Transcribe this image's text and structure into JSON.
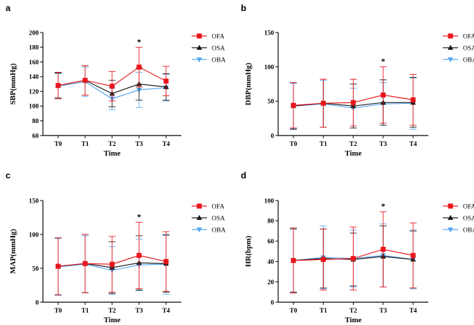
{
  "chart_data": [
    {
      "type": "line",
      "panel": "a",
      "title": "",
      "xlabel": "Time",
      "ylabel": "SBP(mmHg)",
      "categories": [
        "T0",
        "T1",
        "T2",
        "T3",
        "T4"
      ],
      "ylim": [
        60,
        200
      ],
      "yticks": [
        60,
        80,
        100,
        120,
        140,
        160,
        180,
        200
      ],
      "series": [
        {
          "name": "OFA",
          "values": [
            128,
            135,
            127,
            153,
            134
          ],
          "errors": [
            18,
            20,
            20,
            27,
            20
          ]
        },
        {
          "name": "OSA",
          "values": [
            128,
            135,
            117,
            130,
            126
          ],
          "errors": [
            17,
            20,
            18,
            22,
            18
          ]
        },
        {
          "name": "OBA",
          "values": [
            127,
            133,
            110,
            122,
            125
          ],
          "errors": [
            17,
            20,
            15,
            24,
            18
          ]
        }
      ],
      "annotations": [
        {
          "text": "*",
          "category": "T3"
        }
      ],
      "legend": "top-right"
    },
    {
      "type": "line",
      "panel": "b",
      "title": "",
      "xlabel": "Time",
      "ylabel": "DBP(mmHg)",
      "categories": [
        "T0",
        "T1",
        "T2",
        "T3",
        "T4"
      ],
      "ylim": [
        0,
        150
      ],
      "yticks": [
        0,
        50,
        100,
        150
      ],
      "series": [
        {
          "name": "OFA",
          "values": [
            44,
            47,
            48,
            59,
            52
          ],
          "errors": [
            33,
            35,
            34,
            41,
            37
          ]
        },
        {
          "name": "OSA",
          "values": [
            43,
            47,
            43,
            48,
            48
          ],
          "errors": [
            34,
            35,
            32,
            33,
            36
          ]
        },
        {
          "name": "OBA",
          "values": [
            43,
            46,
            40,
            46,
            47
          ],
          "errors": [
            33,
            34,
            29,
            31,
            38
          ]
        }
      ],
      "annotations": [
        {
          "text": "*",
          "category": "T3"
        }
      ],
      "legend": "top-right"
    },
    {
      "type": "line",
      "panel": "c",
      "title": "",
      "xlabel": "Time",
      "ylabel": "MAP(mmHg)",
      "categories": [
        "T0",
        "T1",
        "T2",
        "T3",
        "T4"
      ],
      "ylim": [
        0,
        150
      ],
      "yticks": [
        0,
        50,
        100,
        150
      ],
      "series": [
        {
          "name": "OFA",
          "values": [
            53,
            57,
            56,
            69,
            60
          ],
          "errors": [
            42,
            43,
            41,
            49,
            44
          ]
        },
        {
          "name": "OSA",
          "values": [
            53,
            57,
            51,
            58,
            57
          ],
          "errors": [
            42,
            43,
            38,
            40,
            42
          ]
        },
        {
          "name": "OBA",
          "values": [
            52,
            56,
            47,
            55,
            56
          ],
          "errors": [
            42,
            42,
            35,
            38,
            44
          ]
        }
      ],
      "annotations": [
        {
          "text": "*",
          "category": "T3"
        }
      ],
      "legend": "top-right"
    },
    {
      "type": "line",
      "panel": "d",
      "title": "",
      "xlabel": "Time",
      "ylabel": "HR(bpm)",
      "categories": [
        "T0",
        "T1",
        "T2",
        "T3",
        "T4"
      ],
      "ylim": [
        0,
        100
      ],
      "yticks": [
        0,
        20,
        40,
        60,
        80,
        100
      ],
      "series": [
        {
          "name": "OFA",
          "values": [
            41,
            42,
            43,
            52,
            46
          ],
          "errors": [
            32,
            30,
            31,
            37,
            32
          ]
        },
        {
          "name": "OSA",
          "values": [
            41,
            43,
            42,
            45,
            42
          ],
          "errors": [
            31,
            29,
            26,
            30,
            28
          ]
        },
        {
          "name": "OBA",
          "values": [
            41,
            44,
            43,
            46,
            42
          ],
          "errors": [
            32,
            31,
            28,
            31,
            29
          ]
        }
      ],
      "annotations": [
        {
          "text": "*",
          "category": "T3"
        }
      ],
      "legend": "top-right"
    }
  ],
  "colors": {
    "OFA": "#e8161c",
    "OSA": "#1a1a1a",
    "OBA": "#5aa8f0"
  },
  "legend_markers": {
    "OFA": "square",
    "OSA": "triangle-up",
    "OBA": "triangle-down"
  }
}
